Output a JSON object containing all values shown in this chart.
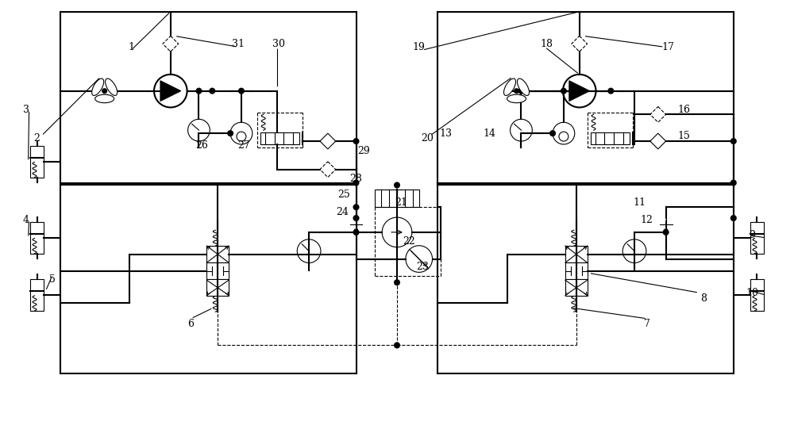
{
  "bg_color": "#ffffff",
  "line_color": "#000000",
  "lw": 1.5,
  "tlw": 0.8,
  "figsize": [
    10.0,
    5.65
  ],
  "dpi": 100
}
